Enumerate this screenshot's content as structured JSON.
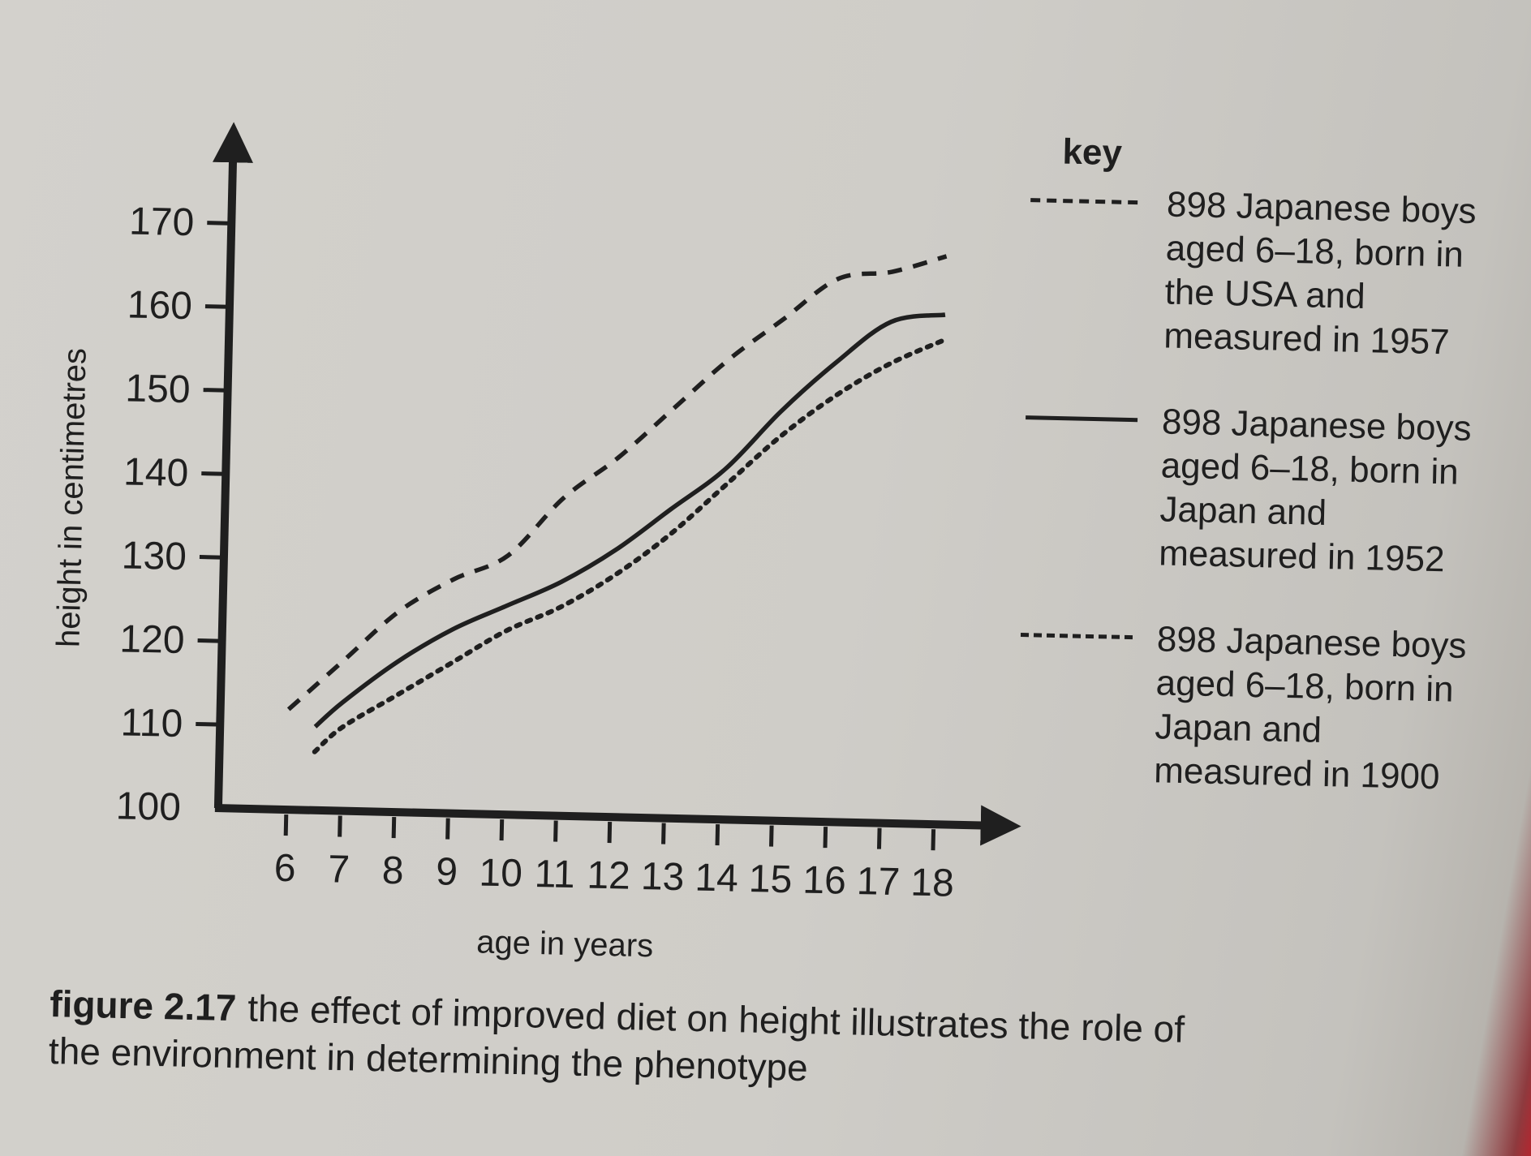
{
  "chart_data": {
    "type": "line",
    "xlabel": "age in years",
    "ylabel": "height in centimetres",
    "x_ticks": [
      6,
      7,
      8,
      9,
      10,
      11,
      12,
      13,
      14,
      15,
      16,
      17,
      18
    ],
    "y_ticks": [
      100,
      110,
      120,
      130,
      140,
      150,
      160,
      170
    ],
    "xlim": [
      6,
      18
    ],
    "ylim": [
      100,
      170
    ],
    "legend_title": "key",
    "legend_position": "right",
    "series": [
      {
        "name": "898 Japanese boys aged 6–18, born in the USA and measured in 1957",
        "legend_lines": [
          "898 Japanese boys",
          "aged 6–18, born in",
          "the USA and",
          "measured in 1957"
        ],
        "style": "dashed",
        "x": [
          6,
          7,
          8,
          9,
          10,
          11,
          12,
          13,
          14,
          15,
          16,
          17,
          18
        ],
        "values": [
          112,
          118,
          124,
          128,
          131,
          138,
          143,
          149,
          155,
          160,
          165,
          166,
          168
        ]
      },
      {
        "name": "898 Japanese boys aged 6–18, born in Japan and measured in 1952",
        "legend_lines": [
          "898 Japanese boys",
          "aged 6–18, born in",
          "Japan and",
          "measured in 1952"
        ],
        "style": "solid",
        "x": [
          6.5,
          7,
          8,
          9,
          10,
          11,
          12,
          13,
          14,
          15,
          16,
          17,
          18
        ],
        "values": [
          110,
          113,
          118,
          122,
          125,
          128,
          132,
          137,
          142,
          149,
          155,
          160,
          161
        ]
      },
      {
        "name": "898 Japanese boys aged 6–18, born in Japan and measured in 1900",
        "legend_lines": [
          "898 Japanese boys",
          "aged 6–18, born in",
          "Japan and",
          "measured in 1900"
        ],
        "style": "dotted",
        "x": [
          6.5,
          7,
          8,
          9,
          10,
          11,
          12,
          13,
          14,
          15,
          16,
          17,
          18
        ],
        "values": [
          107,
          110,
          114,
          118,
          122,
          125,
          129,
          134,
          140,
          146,
          151,
          155,
          158
        ]
      }
    ]
  },
  "caption": {
    "figure_number": "figure 2.17",
    "text": "the effect of improved diet on height illustrates the role of the environment in determining the phenotype"
  }
}
